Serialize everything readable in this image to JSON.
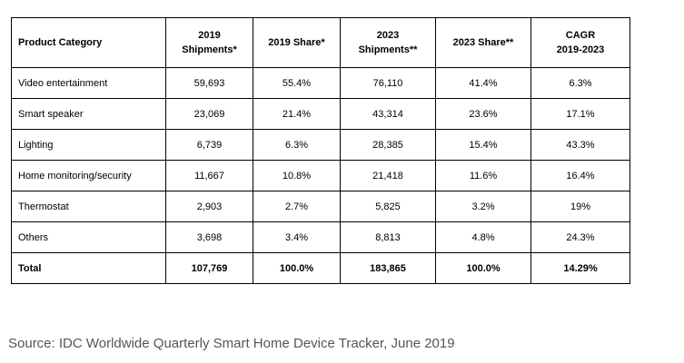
{
  "table": {
    "headers": [
      {
        "line1": "Product Category",
        "line2": ""
      },
      {
        "line1": "2019",
        "line2": "Shipments*"
      },
      {
        "line1": "2019 Share*",
        "line2": ""
      },
      {
        "line1": "2023",
        "line2": "Shipments**"
      },
      {
        "line1": "2023 Share**",
        "line2": ""
      },
      {
        "line1": "CAGR",
        "line2": "2019-2023"
      }
    ],
    "rows": [
      [
        "Video entertainment",
        "59,693",
        "55.4%",
        "76,110",
        "41.4%",
        "6.3%"
      ],
      [
        "Smart speaker",
        "23,069",
        "21.4%",
        "43,314",
        "23.6%",
        "17.1%"
      ],
      [
        "Lighting",
        "6,739",
        "6.3%",
        "28,385",
        "15.4%",
        "43.3%"
      ],
      [
        "Home monitoring/security",
        "11,667",
        "10.8%",
        "21,418",
        "11.6%",
        "16.4%"
      ],
      [
        "Thermostat",
        "2,903",
        "2.7%",
        "5,825",
        "3.2%",
        "19%"
      ],
      [
        "Others",
        "3,698",
        "3.4%",
        "8,813",
        "4.8%",
        "24.3%"
      ]
    ],
    "total": [
      "Total",
      "107,769",
      "100.0%",
      "183,865",
      "100.0%",
      "14.29%"
    ]
  },
  "source": "Source: IDC Worldwide Quarterly Smart Home Device Tracker, June 2019"
}
